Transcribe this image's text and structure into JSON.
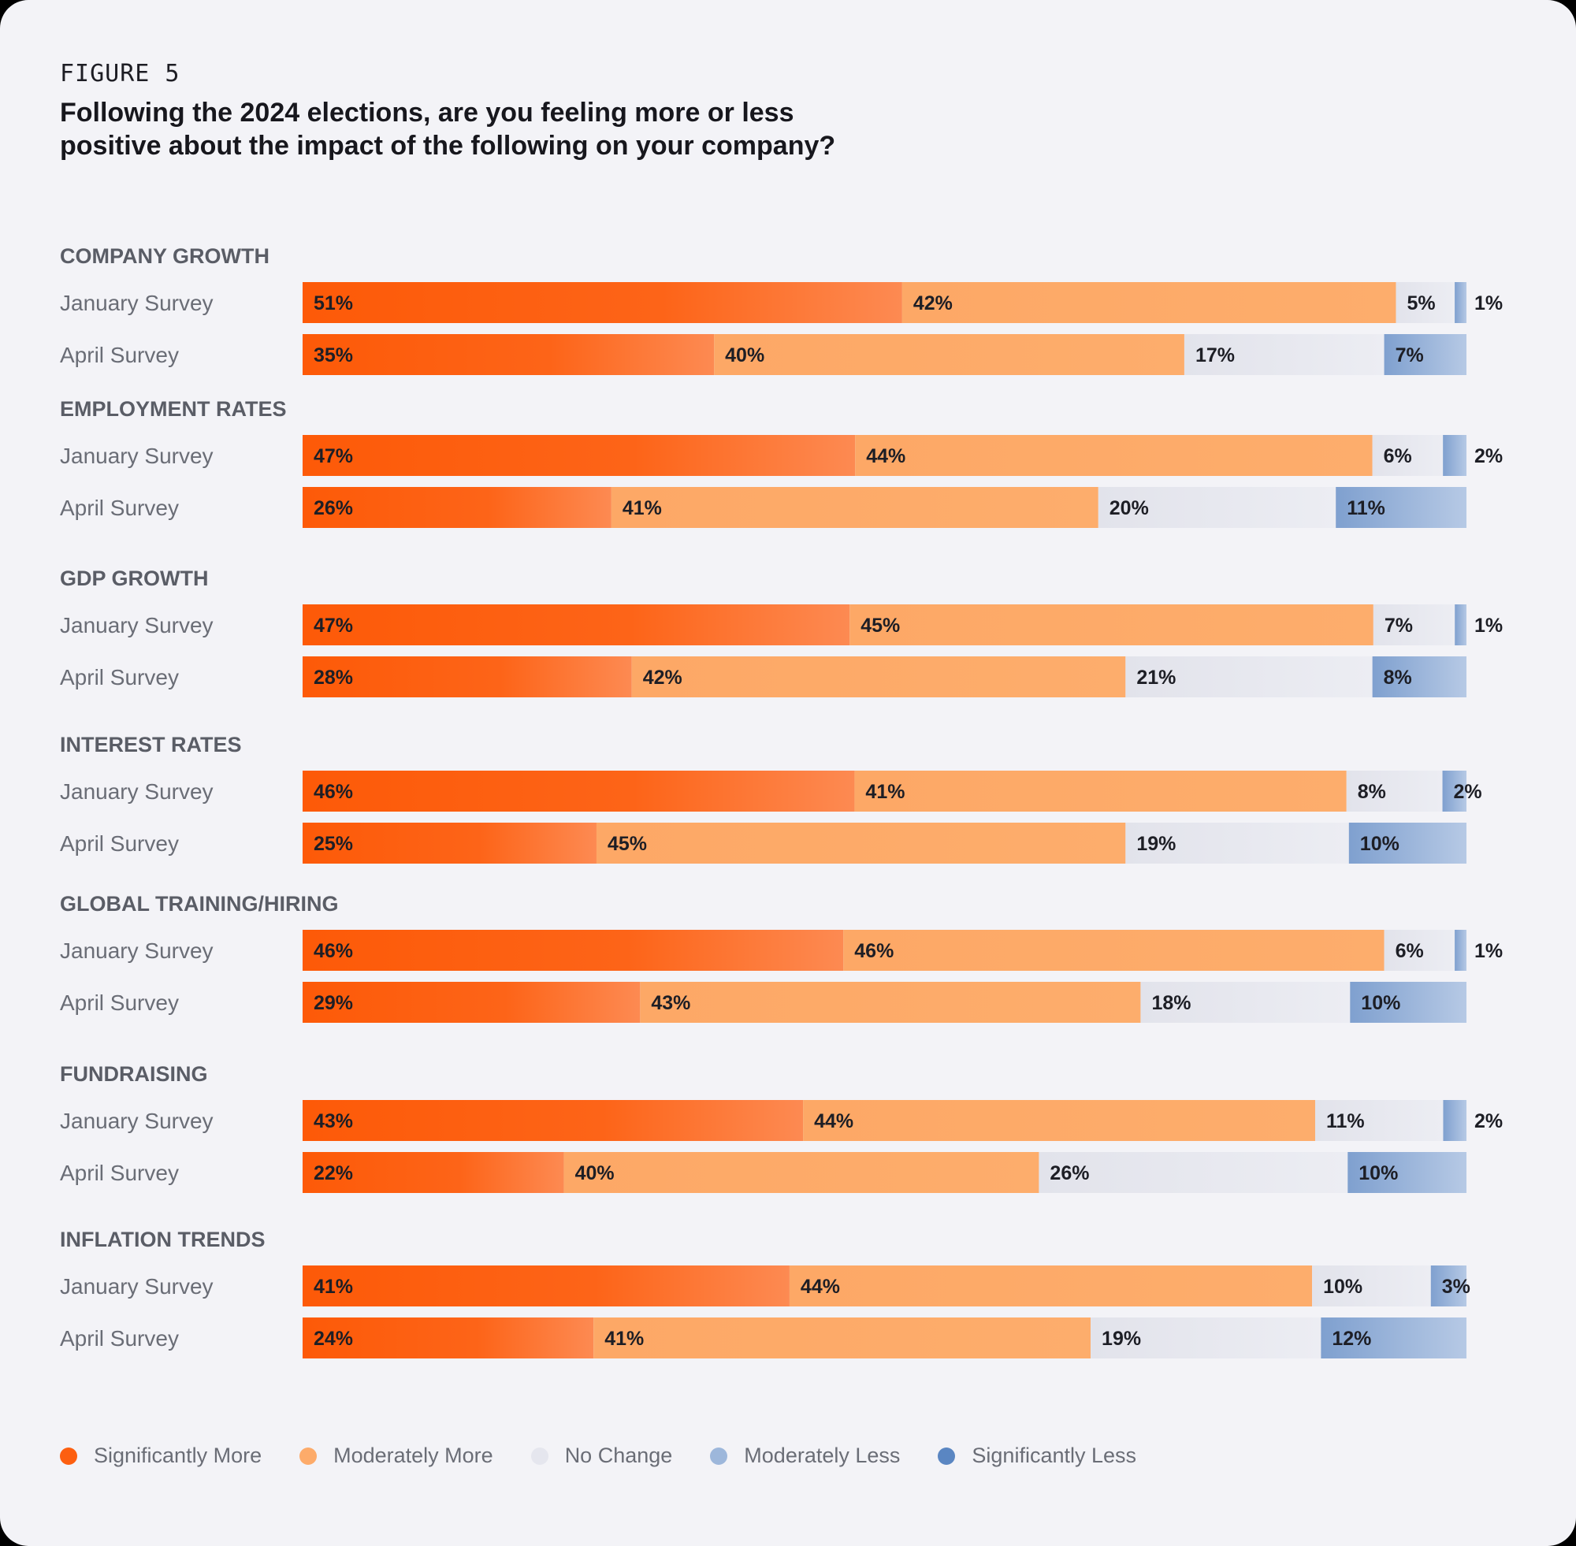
{
  "figure_label": "FIGURE 5",
  "title": "Following the 2024 elections, are you feeling more or less\npositive about the impact of the following on your company?",
  "colors": {
    "significantly_more": "#fd5f10",
    "moderately_more": "#fdab6a",
    "no_change": "#e5e6ee",
    "moderately_less": "#9db7db",
    "significantly_less": "#5a86c2"
  },
  "legend": [
    {
      "label": "Significantly More",
      "color": "#fd5f10"
    },
    {
      "label": "Moderately More",
      "color": "#fdab6a"
    },
    {
      "label": "No Change",
      "color": "#e5e6ee"
    },
    {
      "label": "Moderately Less",
      "color": "#9db7db"
    },
    {
      "label": "Significantly Less",
      "color": "#5a86c2"
    }
  ],
  "chart_data": {
    "type": "bar",
    "orientation": "horizontal",
    "stacked": true,
    "series": [
      "Significantly More",
      "Moderately More",
      "No Change",
      "Moderately Less / Significantly Less"
    ],
    "groups": [
      {
        "category": "COMPANY GROWTH",
        "rows": [
          {
            "label": "January Survey",
            "values": [
              51,
              42,
              5,
              1
            ],
            "labels": [
              "51%",
              "42%",
              "5%",
              "1%"
            ]
          },
          {
            "label": "April Survey",
            "values": [
              35,
              40,
              17,
              7
            ],
            "labels": [
              "35%",
              "40%",
              "17%",
              "7%"
            ]
          }
        ]
      },
      {
        "category": "EMPLOYMENT RATES",
        "rows": [
          {
            "label": "January Survey",
            "values": [
              47,
              44,
              6,
              2
            ],
            "labels": [
              "47%",
              "44%",
              "6%",
              "2%"
            ]
          },
          {
            "label": "April Survey",
            "values": [
              26,
              41,
              20,
              11
            ],
            "labels": [
              "26%",
              "41%",
              "20%",
              "11%"
            ]
          }
        ]
      },
      {
        "category": "GDP GROWTH",
        "rows": [
          {
            "label": "January Survey",
            "values": [
              47,
              45,
              7,
              1
            ],
            "labels": [
              "47%",
              "45%",
              "7%",
              "1%"
            ]
          },
          {
            "label": "April Survey",
            "values": [
              28,
              42,
              21,
              8
            ],
            "labels": [
              "28%",
              "42%",
              "21%",
              "8%"
            ]
          }
        ]
      },
      {
        "category": "INTEREST RATES",
        "rows": [
          {
            "label": "January Survey",
            "values": [
              46,
              41,
              8,
              2
            ],
            "labels": [
              "46%",
              "41%",
              "8%",
              "2%"
            ]
          },
          {
            "label": "April Survey",
            "values": [
              25,
              45,
              19,
              10
            ],
            "labels": [
              "25%",
              "45%",
              "19%",
              "10%"
            ]
          }
        ]
      },
      {
        "category": "GLOBAL TRAINING/HIRING",
        "rows": [
          {
            "label": "January Survey",
            "values": [
              46,
              46,
              6,
              1
            ],
            "labels": [
              "46%",
              "46%",
              "6%",
              "1%"
            ]
          },
          {
            "label": "April Survey",
            "values": [
              29,
              43,
              18,
              10
            ],
            "labels": [
              "29%",
              "43%",
              "18%",
              "10%"
            ]
          }
        ]
      },
      {
        "category": "FUNDRAISING",
        "rows": [
          {
            "label": "January Survey",
            "values": [
              43,
              44,
              11,
              2
            ],
            "labels": [
              "43%",
              "44%",
              "11%",
              "2%"
            ]
          },
          {
            "label": "April Survey",
            "values": [
              22,
              40,
              26,
              10
            ],
            "labels": [
              "22%",
              "40%",
              "26%",
              "10%"
            ]
          }
        ]
      },
      {
        "category": "INFLATION TRENDS",
        "rows": [
          {
            "label": "January Survey",
            "values": [
              41,
              44,
              10,
              3
            ],
            "labels": [
              "41%",
              "44%",
              "10%",
              "3%"
            ]
          },
          {
            "label": "April Survey",
            "values": [
              24,
              41,
              19,
              12
            ],
            "labels": [
              "24%",
              "41%",
              "19%",
              "12%"
            ]
          }
        ]
      }
    ]
  }
}
